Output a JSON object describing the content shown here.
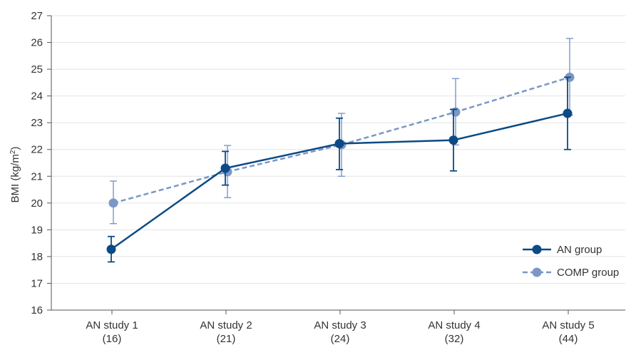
{
  "chart_data": {
    "type": "line",
    "categories": [
      {
        "line1": "AN study 1",
        "line2": "(16)"
      },
      {
        "line1": "AN study 2",
        "line2": "(21)"
      },
      {
        "line1": "AN study 3",
        "line2": "(24)"
      },
      {
        "line1": "AN study 4",
        "line2": "(32)"
      },
      {
        "line1": "AN study 5",
        "line2": "(44)"
      }
    ],
    "ylabel": "BMI (kg/m",
    "ylabel_sup": "2",
    "ylabel_suffix": ")",
    "ylim": [
      16,
      27
    ],
    "yticks": [
      16,
      17,
      18,
      19,
      20,
      21,
      22,
      23,
      24,
      25,
      26,
      27
    ],
    "grid": true,
    "legend_position": "bottom-right",
    "series": [
      {
        "name": "AN group",
        "color": "#0b4a85",
        "line_style": "solid",
        "values": [
          18.27,
          21.3,
          22.22,
          22.35,
          23.35
        ],
        "err_low": [
          17.8,
          20.67,
          21.25,
          21.2,
          22.0
        ],
        "err_high": [
          18.75,
          21.93,
          23.17,
          23.5,
          24.7
        ]
      },
      {
        "name": "COMP group",
        "color": "#7b97c6",
        "line_style": "dashed",
        "values": [
          20.0,
          21.17,
          22.18,
          23.4,
          24.7
        ],
        "err_low": [
          19.23,
          20.2,
          21.0,
          22.17,
          23.28
        ],
        "err_high": [
          20.82,
          22.15,
          23.35,
          24.65,
          26.15
        ]
      }
    ]
  }
}
